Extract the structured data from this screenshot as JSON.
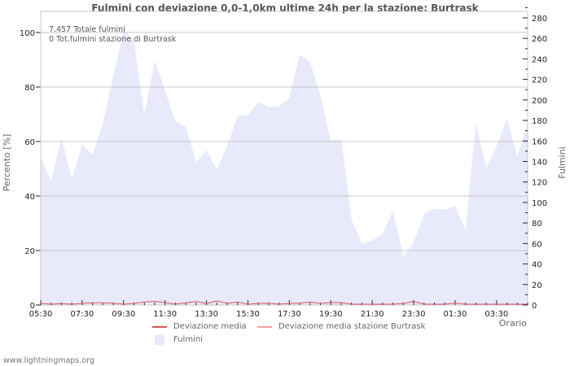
{
  "title": "Fulmini con deviazione 0,0-1,0km ultime 24h per la stazione: Burtrask",
  "annotations": {
    "total": "7.457 Totale fulmini",
    "station_total": "0 Tot.fulmini stazione di Burtrask"
  },
  "axes": {
    "left_title": "Percento   [%]",
    "right_title": "Fulmini",
    "x_title": "Orario",
    "left_ticks": [
      "0",
      "20",
      "40",
      "60",
      "80",
      "100"
    ],
    "right_ticks": [
      "0",
      "20",
      "40",
      "60",
      "80",
      "100",
      "120",
      "140",
      "160",
      "180",
      "200",
      "220",
      "240",
      "260",
      "280"
    ],
    "x_ticks": [
      "05:30",
      "07:30",
      "09:30",
      "11:30",
      "13:30",
      "15:30",
      "17:30",
      "19:30",
      "21:30",
      "23:30",
      "01:30",
      "03:30"
    ]
  },
  "legend": {
    "items": [
      {
        "label": "Deviazione media",
        "color": "#d9545e",
        "kind": "line"
      },
      {
        "label": "Deviazione media stazione Burtrask",
        "color": "#f4a0a0",
        "kind": "line"
      },
      {
        "label": "Fulmini",
        "color": "#e8e8fc",
        "kind": "area"
      }
    ]
  },
  "footer": "www.lightningmaps.org",
  "colors": {
    "area": "#e9e9fc",
    "grid": "#c8c8c8",
    "deviation_line": "#d9545e",
    "station_line": "#f4a0a0"
  },
  "chart_data": {
    "type": "area",
    "title": "Fulmini con deviazione 0,0-1,0km ultime 24h per la stazione: Burtrask",
    "xlabel": "Orario",
    "ylabel": "Percento [%]",
    "y2label": "Fulmini",
    "ylim": [
      0,
      100
    ],
    "y2lim": [
      0,
      280
    ],
    "grid": true,
    "legend_position": "bottom",
    "categories": [
      "05:30",
      "07:30",
      "09:30",
      "11:30",
      "13:30",
      "15:30",
      "17:30",
      "19:30",
      "21:30",
      "23:30",
      "01:30",
      "03:30"
    ],
    "series": [
      {
        "name": "Fulmini",
        "axis": "right",
        "x": [
          "05:30",
          "06:00",
          "06:30",
          "07:00",
          "07:30",
          "08:00",
          "08:30",
          "09:00",
          "09:30",
          "10:00",
          "10:30",
          "11:00",
          "11:30",
          "12:00",
          "12:30",
          "13:00",
          "13:30",
          "14:00",
          "14:30",
          "15:00",
          "15:30",
          "16:00",
          "16:30",
          "17:00",
          "17:30",
          "18:00",
          "18:30",
          "19:00",
          "19:30",
          "20:00",
          "20:30",
          "21:00",
          "21:30",
          "22:00",
          "22:30",
          "23:00",
          "23:30",
          "00:00",
          "00:30",
          "01:00",
          "01:30",
          "02:00",
          "02:30",
          "03:00",
          "03:30",
          "04:00",
          "04:30",
          "05:00"
        ],
        "values": [
          144,
          121,
          163,
          123,
          156,
          147,
          177,
          223,
          268,
          258,
          185,
          238,
          209,
          179,
          174,
          139,
          151,
          132,
          155,
          184,
          185,
          198,
          193,
          194,
          202,
          244,
          237,
          204,
          160,
          162,
          83,
          60,
          63,
          69,
          92,
          47,
          61,
          89,
          94,
          93,
          97,
          73,
          178,
          134,
          155,
          182,
          145,
          178
        ]
      },
      {
        "name": "Deviazione media",
        "axis": "left",
        "values": [
          0.3,
          0,
          0.2,
          0,
          0.3,
          0.5,
          0.5,
          0.4,
          0,
          0.3,
          0.8,
          1,
          0.6,
          0,
          0.5,
          1,
          0.2,
          1.2,
          0.3,
          0.8,
          0,
          0.3,
          0.4,
          0,
          0.3,
          0.4,
          0.8,
          0.3,
          0.6,
          0.6,
          0,
          0,
          0,
          0,
          0,
          0.3,
          1,
          0,
          0,
          0,
          0.4,
          0,
          0,
          0,
          0,
          0,
          0,
          0
        ]
      },
      {
        "name": "Deviazione media stazione Burtrask",
        "axis": "left",
        "values": []
      }
    ]
  }
}
